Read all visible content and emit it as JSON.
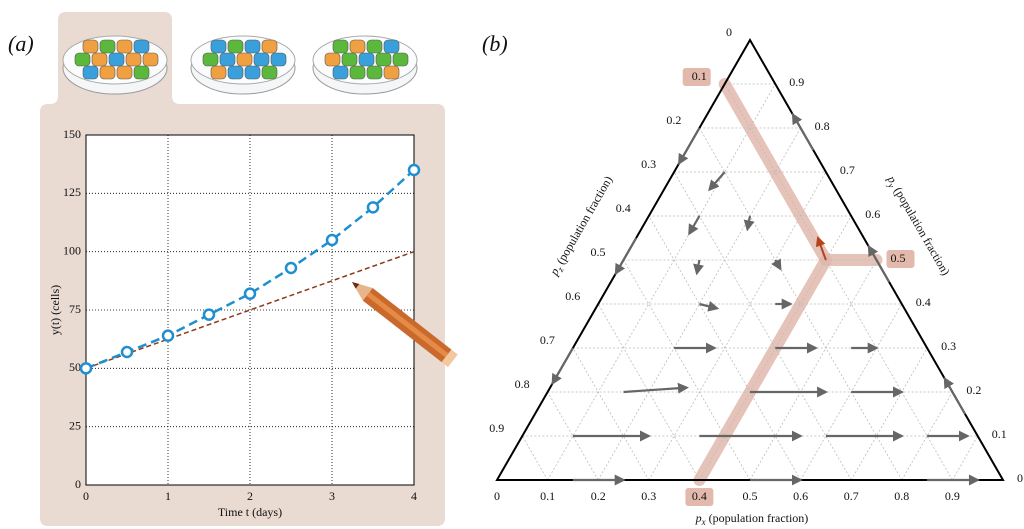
{
  "chart_data": [
    {
      "type": "line",
      "panel_label": "(a)",
      "xlabel": "Time t (days)",
      "ylabel": "y(t) (cells)",
      "x": [
        0,
        0.5,
        1,
        1.5,
        2,
        2.5,
        3,
        3.5,
        4
      ],
      "xlim": [
        0,
        4
      ],
      "xticks": [
        0,
        1,
        2,
        3,
        4
      ],
      "ylim": [
        0,
        150
      ],
      "yticks": [
        0,
        25,
        50,
        75,
        100,
        125,
        150
      ],
      "grid": true,
      "series": [
        {
          "color": "#1f8fd0",
          "marker": true,
          "dash": "9,5",
          "values": [
            50,
            57,
            64,
            73,
            82,
            93,
            105,
            119,
            135
          ]
        },
        {
          "color": "#8b3a1a",
          "marker": false,
          "dash": "5,3",
          "values": [
            50,
            56.25,
            62.5,
            68.75,
            75,
            81.25,
            87.5,
            93.75,
            100
          ]
        }
      ]
    },
    {
      "type": "ternary",
      "panel_label": "(b)",
      "xlabel": {
        "symbol": "p",
        "sub": "x",
        "text": "(population fraction)"
      },
      "ylabel": {
        "symbol": "p",
        "sub": "y",
        "text": "(population fraction)"
      },
      "zlabel": {
        "symbol": "p",
        "sub": "z",
        "text": "(population fraction)"
      },
      "xticks": [
        0,
        0.1,
        0.2,
        0.3,
        0.4,
        0.5,
        0.6,
        0.7,
        0.8,
        0.9
      ],
      "yticks": [
        0,
        0.1,
        0.2,
        0.3,
        0.4,
        0.5,
        0.6,
        0.7,
        0.8,
        0.9
      ],
      "zticks": [
        0,
        0.1,
        0.2,
        0.3,
        0.4,
        0.5,
        0.6,
        0.7,
        0.8,
        0.9
      ],
      "grid": true,
      "highlight": {
        "x": 0.4,
        "y": 0.5,
        "z": 0.1
      },
      "arrows": [
        {
          "x": 0.1,
          "y": 0.1,
          "dx": 0.15,
          "dy": 0
        },
        {
          "x": 0.35,
          "y": 0.1,
          "dx": 0.2,
          "dy": 0
        },
        {
          "x": 0.6,
          "y": 0.1,
          "dx": 0.15,
          "dy": 0
        },
        {
          "x": 0.8,
          "y": 0.1,
          "dx": 0.08,
          "dy": 0
        },
        {
          "x": 0.15,
          "y": 0.2,
          "dx": 0.12,
          "dy": 0.01
        },
        {
          "x": 0.4,
          "y": 0.2,
          "dx": 0.15,
          "dy": 0
        },
        {
          "x": 0.6,
          "y": 0.2,
          "dx": 0.1,
          "dy": 0
        },
        {
          "x": 0.2,
          "y": 0.3,
          "dx": 0.08,
          "dy": 0
        },
        {
          "x": 0.4,
          "y": 0.3,
          "dx": 0.08,
          "dy": 0
        },
        {
          "x": 0.55,
          "y": 0.3,
          "dx": 0.05,
          "dy": 0
        },
        {
          "x": 0.2,
          "y": 0.4,
          "dx": 0.04,
          "dy": -0.01
        },
        {
          "x": 0.35,
          "y": 0.4,
          "dx": 0.03,
          "dy": 0
        },
        {
          "x": 0.15,
          "y": 0.5,
          "dx": 0.01,
          "dy": -0.03
        },
        {
          "x": 0.3,
          "y": 0.5,
          "dx": 0.02,
          "dy": -0.02
        },
        {
          "x": 0.1,
          "y": 0.6,
          "dx": 0,
          "dy": -0.04
        },
        {
          "x": 0.2,
          "y": 0.6,
          "dx": 0.01,
          "dy": -0.03
        },
        {
          "x": 0.1,
          "y": 0.7,
          "dx": -0.01,
          "dy": -0.04
        },
        {
          "x": 0.15,
          "y": 0,
          "dx": 0.1,
          "dy": 0
        },
        {
          "x": 0.5,
          "y": 0,
          "dx": 0.1,
          "dy": 0
        },
        {
          "x": 0.85,
          "y": 0,
          "dx": 0.1,
          "dy": 0
        },
        {
          "x": 0,
          "y": 0.8,
          "dx": 0,
          "dy": -0.08
        },
        {
          "x": 0,
          "y": 0.55,
          "dx": 0,
          "dy": -0.08
        },
        {
          "x": 0,
          "y": 0.3,
          "dx": 0,
          "dy": -0.08
        },
        {
          "x": 0.85,
          "y": 0.15,
          "dx": -0.08,
          "dy": 0.08
        },
        {
          "x": 0.55,
          "y": 0.45,
          "dx": -0.08,
          "dy": 0.08
        },
        {
          "x": 0.25,
          "y": 0.75,
          "dx": -0.08,
          "dy": 0.08
        }
      ]
    }
  ]
}
